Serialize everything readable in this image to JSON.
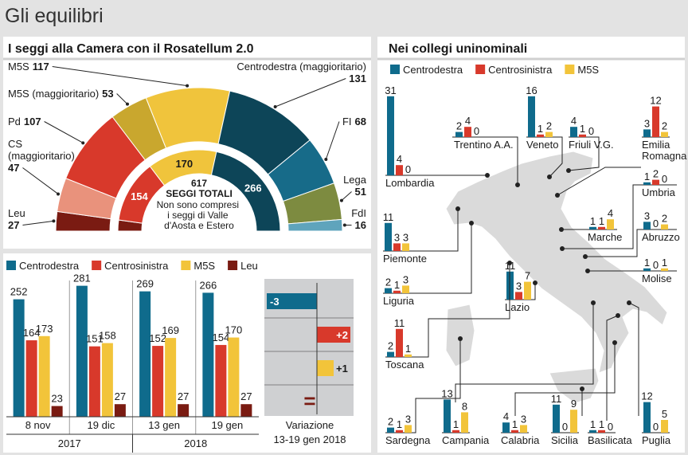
{
  "title": "Gli equilibri",
  "chart_data": [
    {
      "type": "semicircle",
      "title": "I seggi alla Camera con il Rosatellum 2.0",
      "outer": {
        "categories": [
          "Leu",
          "CS (maggioritario)",
          "Pd",
          "M5S (maggioritario)",
          "M5S",
          "Centrodestra (maggioritario)",
          "FI",
          "Lega",
          "FdI"
        ],
        "values": [
          27,
          47,
          107,
          53,
          117,
          131,
          68,
          51,
          16
        ],
        "colors": [
          "#7a1b12",
          "#e9927c",
          "#d8392b",
          "#c9a72e",
          "#f0c43c",
          "#0d4558",
          "#176b89",
          "#7d8b40",
          "#5fa4bc"
        ]
      },
      "inner": {
        "values": [
          27,
          154,
          170,
          266
        ],
        "colors": [
          "#7a1b12",
          "#d8392b",
          "#f0c43c",
          "#0d4558"
        ]
      },
      "total": 617,
      "total_label": "SEGGI TOTALI",
      "note": "Non sono compresi i seggi di Valle d'Aosta e Estero"
    },
    {
      "type": "bar",
      "groups": [
        {
          "label": "2017",
          "categories": [
            "8 nov",
            "19 dic"
          ]
        },
        {
          "label": "2018",
          "categories": [
            "13 gen",
            "19 gen"
          ]
        }
      ],
      "series": [
        {
          "name": "Centrodestra",
          "color": "#0f6b8c",
          "values": [
            252,
            281,
            269,
            266
          ]
        },
        {
          "name": "Centrosinistra",
          "color": "#d8392b",
          "values": [
            164,
            151,
            152,
            154
          ]
        },
        {
          "name": "M5S",
          "color": "#f2c43a",
          "values": [
            173,
            158,
            169,
            170
          ]
        },
        {
          "name": "Leu",
          "color": "#7a1b12",
          "values": [
            23,
            27,
            27,
            27
          ]
        }
      ]
    },
    {
      "type": "diverging-bar",
      "title": "Variazione",
      "subtitle": "13-19 gen 2018",
      "values": [
        -3,
        2,
        1,
        0
      ],
      "value_labels": [
        "-3",
        "+2",
        "+1",
        "="
      ],
      "colors": [
        "#0f6b8c",
        "#d8392b",
        "#f2c43a",
        "#7a1b12"
      ]
    },
    {
      "type": "small-multiples",
      "title": "Nei collegi uninominali",
      "series": [
        {
          "name": "Centrodestra",
          "color": "#0f6b8c"
        },
        {
          "name": "Centrosinistra",
          "color": "#d8392b"
        },
        {
          "name": "M5S",
          "color": "#f2c43a"
        }
      ],
      "regions": [
        {
          "name": "Lombardia",
          "values": [
            31,
            4,
            0
          ]
        },
        {
          "name": "Trentino A.A.",
          "values": [
            2,
            4,
            0
          ]
        },
        {
          "name": "Veneto",
          "values": [
            16,
            1,
            2
          ]
        },
        {
          "name": "Friuli V.G.",
          "values": [
            4,
            1,
            0
          ]
        },
        {
          "name": "Emilia Romagna",
          "values": [
            3,
            12,
            2
          ]
        },
        {
          "name": "Umbria",
          "values": [
            1,
            2,
            0
          ]
        },
        {
          "name": "Marche",
          "values": [
            1,
            1,
            4
          ]
        },
        {
          "name": "Abruzzo",
          "values": [
            3,
            0,
            2
          ]
        },
        {
          "name": "Molise",
          "values": [
            1,
            0,
            1
          ]
        },
        {
          "name": "Piemonte",
          "values": [
            11,
            3,
            3
          ]
        },
        {
          "name": "Liguria",
          "values": [
            2,
            1,
            3
          ]
        },
        {
          "name": "Lazio",
          "values": [
            11,
            3,
            7
          ]
        },
        {
          "name": "Toscana",
          "values": [
            2,
            11,
            1
          ]
        },
        {
          "name": "Sardegna",
          "values": [
            2,
            1,
            3
          ]
        },
        {
          "name": "Campania",
          "values": [
            13,
            1,
            8
          ]
        },
        {
          "name": "Calabria",
          "values": [
            4,
            1,
            3
          ]
        },
        {
          "name": "Sicilia",
          "values": [
            11,
            0,
            9
          ]
        },
        {
          "name": "Basilicata",
          "values": [
            1,
            1,
            0
          ]
        },
        {
          "name": "Puglia",
          "values": [
            12,
            0,
            5
          ]
        }
      ]
    }
  ]
}
